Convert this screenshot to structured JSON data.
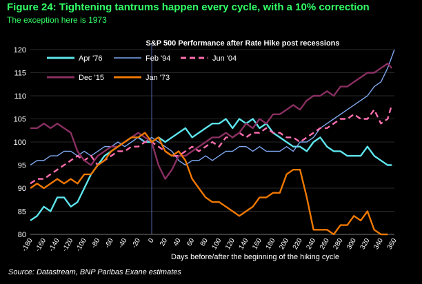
{
  "figure": {
    "title": "Figure 24: Tightening tantrums happen every cycle, with a 10% correction",
    "subtitle": "The exception here is 1973",
    "source": "Source:  Datastream, BNP Paribas Exane estimates"
  },
  "chart_data": {
    "type": "line",
    "title": "S&P 500 Performance after Rate Hike post recessions",
    "xlabel": "Days before/after the beginning of the hiking cycle",
    "ylabel": "",
    "xlim": [
      -180,
      360
    ],
    "ylim": [
      80,
      120
    ],
    "xticks": [
      -180,
      -160,
      -140,
      -120,
      -100,
      -80,
      -60,
      -40,
      -20,
      0,
      20,
      40,
      60,
      80,
      100,
      120,
      140,
      160,
      180,
      200,
      220,
      240,
      260,
      280,
      300,
      320,
      340,
      360
    ],
    "yticks": [
      80,
      85,
      90,
      95,
      100,
      105,
      110,
      115,
      120
    ],
    "event_line_x": 0,
    "legend_position": "top",
    "series": [
      {
        "name": "Apr '76",
        "color": "#5ee6ee",
        "dash": "",
        "x": [
          -180,
          -170,
          -160,
          -150,
          -140,
          -130,
          -120,
          -110,
          -100,
          -90,
          -80,
          -70,
          -60,
          -50,
          -40,
          -30,
          -20,
          -10,
          0,
          10,
          20,
          30,
          40,
          50,
          60,
          70,
          80,
          90,
          100,
          110,
          120,
          130,
          140,
          150,
          160,
          170,
          180,
          190,
          200,
          210,
          220,
          230,
          240,
          250,
          260,
          270,
          280,
          290,
          300,
          310,
          320,
          330,
          340,
          350,
          356
        ],
        "y": [
          83,
          84,
          86,
          85,
          88,
          88,
          86,
          87,
          90,
          93,
          95,
          97,
          98,
          99,
          100,
          101,
          101,
          100,
          100,
          101,
          100,
          101,
          102,
          103,
          101,
          102,
          103,
          104,
          104,
          105,
          103,
          105,
          104,
          105,
          103,
          104,
          102,
          101,
          100,
          99,
          99,
          98,
          100,
          101,
          99,
          98,
          98,
          97,
          97,
          97,
          99,
          97,
          96,
          95,
          95
        ]
      },
      {
        "name": "Feb '94",
        "color": "#7ea8f0",
        "dash": "",
        "x": [
          -180,
          -170,
          -160,
          -150,
          -140,
          -130,
          -120,
          -110,
          -100,
          -90,
          -80,
          -70,
          -60,
          -50,
          -40,
          -30,
          -20,
          -10,
          0,
          10,
          20,
          30,
          40,
          50,
          60,
          70,
          80,
          90,
          100,
          110,
          120,
          130,
          140,
          150,
          160,
          170,
          180,
          190,
          200,
          210,
          220,
          230,
          240,
          250,
          260,
          270,
          280,
          290,
          300,
          310,
          320,
          330,
          340,
          350,
          360
        ],
        "y": [
          95,
          96,
          96,
          97,
          97,
          98,
          98,
          97,
          98,
          97,
          98,
          99,
          99,
          100,
          99,
          100,
          101,
          100,
          101,
          100,
          99,
          98,
          96,
          95,
          96,
          96,
          97,
          96,
          97,
          98,
          98,
          99,
          99,
          98,
          99,
          98,
          98,
          98,
          99,
          98,
          100,
          100,
          101,
          103,
          104,
          105,
          106,
          107,
          108,
          109,
          110,
          112,
          113,
          116,
          120
        ]
      },
      {
        "name": "Jun '04",
        "color": "#ff6fb0",
        "dash": "8 5",
        "x": [
          -180,
          -170,
          -160,
          -150,
          -140,
          -130,
          -120,
          -110,
          -100,
          -90,
          -80,
          -70,
          -60,
          -50,
          -40,
          -30,
          -20,
          -10,
          0,
          10,
          20,
          30,
          40,
          50,
          60,
          70,
          80,
          90,
          100,
          110,
          120,
          130,
          140,
          150,
          160,
          170,
          180,
          190,
          200,
          210,
          220,
          230,
          240,
          250,
          260,
          270,
          280,
          290,
          300,
          310,
          320,
          330,
          340,
          350,
          356
        ],
        "y": [
          91,
          92,
          92,
          93,
          94,
          95,
          96,
          97,
          96,
          97,
          95,
          96,
          97,
          98,
          98,
          99,
          99,
          100,
          100,
          99,
          98,
          97,
          97,
          98,
          99,
          98,
          99,
          100,
          99,
          101,
          101,
          102,
          101,
          102,
          102,
          103,
          102,
          102,
          101,
          101,
          100,
          101,
          102,
          103,
          103,
          104,
          105,
          105,
          106,
          105,
          105,
          107,
          104,
          105,
          108
        ]
      },
      {
        "name": "Dec '15",
        "color": "#8a2f62",
        "dash": "",
        "x": [
          -180,
          -170,
          -160,
          -150,
          -140,
          -130,
          -120,
          -110,
          -100,
          -90,
          -80,
          -70,
          -60,
          -50,
          -40,
          -30,
          -20,
          -10,
          0,
          10,
          20,
          30,
          40,
          50,
          60,
          70,
          80,
          90,
          100,
          110,
          120,
          130,
          140,
          150,
          160,
          170,
          180,
          190,
          200,
          210,
          220,
          230,
          240,
          250,
          260,
          270,
          280,
          290,
          300,
          310,
          320,
          330,
          340,
          350,
          356
        ],
        "y": [
          103,
          103,
          104,
          103,
          104,
          103,
          102,
          98,
          96,
          95,
          97,
          98,
          99,
          99,
          100,
          101,
          102,
          101,
          100,
          95,
          92,
          94,
          97,
          97,
          98,
          99,
          100,
          101,
          101,
          102,
          101,
          102,
          104,
          103,
          105,
          104,
          106,
          106,
          107,
          108,
          107,
          109,
          110,
          110,
          111,
          110,
          112,
          112,
          113,
          114,
          115,
          115,
          116,
          117,
          116
        ]
      },
      {
        "name": "Jan '73",
        "color": "#f07800",
        "dash": "",
        "x": [
          -180,
          -170,
          -160,
          -150,
          -140,
          -130,
          -120,
          -110,
          -100,
          -90,
          -80,
          -70,
          -60,
          -50,
          -40,
          -30,
          -20,
          -10,
          0,
          10,
          20,
          30,
          40,
          50,
          60,
          70,
          80,
          90,
          100,
          110,
          120,
          130,
          140,
          150,
          160,
          170,
          180,
          190,
          200,
          210,
          220,
          230,
          240,
          250,
          260,
          270,
          280,
          290,
          300,
          310,
          320,
          330,
          340,
          350
        ],
        "y": [
          90,
          91,
          90,
          91,
          92,
          91,
          92,
          91,
          93,
          93,
          95,
          96,
          98,
          99,
          100,
          101,
          101,
          102,
          100,
          101,
          98,
          97,
          98,
          96,
          92,
          90,
          88,
          87,
          87,
          86,
          85,
          84,
          85,
          86,
          88,
          88,
          89,
          89,
          93,
          94,
          94,
          88,
          81,
          81,
          81,
          80,
          82,
          82,
          84,
          83,
          85,
          81,
          80,
          80
        ]
      }
    ]
  }
}
